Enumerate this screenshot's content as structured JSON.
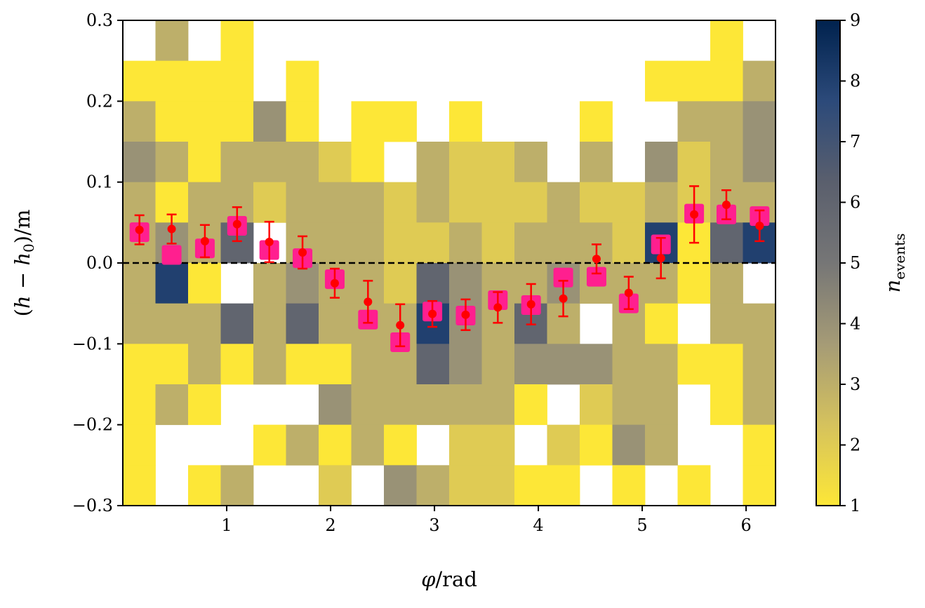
{
  "chart_data": {
    "type": "heatmap",
    "title": "",
    "xlabel": "φ/rad",
    "ylabel": "(h − h0)/m",
    "colorbar_label": "n_events",
    "xlim": [
      0,
      6.2832
    ],
    "ylim": [
      -0.3,
      0.3
    ],
    "x_ticks": [
      1,
      2,
      3,
      4,
      5,
      6
    ],
    "x_tick_labels": [
      "1",
      "2",
      "3",
      "4",
      "5",
      "6"
    ],
    "y_ticks": [
      -0.3,
      -0.2,
      -0.1,
      0.0,
      0.1,
      0.2,
      0.3
    ],
    "y_tick_labels": [
      "−0.3",
      "−0.2",
      "−0.1",
      "0.0",
      "0.1",
      "0.2",
      "0.3"
    ],
    "colorbar_range": [
      1,
      9
    ],
    "colorbar_ticks": [
      1,
      2,
      3,
      4,
      5,
      6,
      7,
      8,
      9
    ],
    "colorbar_tick_labels": [
      "1",
      "2",
      "3",
      "4",
      "5",
      "6",
      "7",
      "8",
      "9"
    ],
    "colormap": "cividis (reversed)",
    "colormap_stops": [
      "#fde737",
      "#d5c25d",
      "#a59b76",
      "#767676",
      "#5a5f6d",
      "#2c4a7a",
      "#00224e"
    ],
    "reference_line": {
      "y": 0.0,
      "style": "dashed",
      "color": "#000000"
    },
    "grid": false,
    "heatmap": {
      "n_x_bins": 20,
      "n_y_bins": 12,
      "y_top": 0.3,
      "y_bottom": -0.3,
      "counts_top_to_bottom": [
        [
          0,
          3,
          0,
          1,
          0,
          0,
          0,
          0,
          0,
          0,
          0,
          0,
          0,
          0,
          0,
          0,
          0,
          0,
          1,
          0
        ],
        [
          1,
          1,
          1,
          1,
          0,
          1,
          0,
          0,
          0,
          0,
          0,
          0,
          0,
          0,
          0,
          0,
          1,
          1,
          1,
          3
        ],
        [
          3,
          1,
          1,
          1,
          4,
          1,
          0,
          1,
          1,
          0,
          1,
          0,
          0,
          0,
          1,
          0,
          0,
          3,
          3,
          4
        ],
        [
          4,
          3,
          1,
          3,
          3,
          3,
          2,
          1,
          0,
          3,
          2,
          2,
          3,
          0,
          3,
          0,
          4,
          2,
          3,
          4
        ],
        [
          3,
          1,
          3,
          3,
          2,
          3,
          3,
          3,
          2,
          3,
          2,
          2,
          2,
          3,
          2,
          2,
          3,
          2,
          3,
          3
        ],
        [
          3,
          4,
          3,
          6,
          0,
          3,
          3,
          3,
          2,
          2,
          3,
          2,
          3,
          3,
          3,
          2,
          8,
          1,
          6,
          8
        ],
        [
          3,
          8,
          1,
          0,
          3,
          4,
          3,
          3,
          2,
          6,
          4,
          3,
          3,
          4,
          3,
          3,
          3,
          1,
          3,
          0
        ],
        [
          3,
          3,
          3,
          6,
          3,
          6,
          3,
          3,
          3,
          8,
          4,
          3,
          6,
          3,
          0,
          3,
          1,
          0,
          3,
          3
        ],
        [
          1,
          1,
          3,
          1,
          3,
          1,
          1,
          3,
          3,
          6,
          4,
          3,
          4,
          4,
          4,
          3,
          3,
          1,
          1,
          3
        ],
        [
          1,
          3,
          1,
          0,
          0,
          0,
          4,
          3,
          3,
          3,
          3,
          3,
          1,
          0,
          2,
          3,
          3,
          0,
          1,
          3
        ],
        [
          1,
          0,
          0,
          0,
          1,
          3,
          1,
          3,
          1,
          0,
          2,
          2,
          0,
          2,
          1,
          4,
          3,
          0,
          0,
          1
        ],
        [
          1,
          0,
          1,
          3,
          0,
          0,
          2,
          0,
          4,
          3,
          2,
          2,
          1,
          1,
          0,
          1,
          0,
          1,
          0,
          1
        ]
      ]
    },
    "series": [
      {
        "name": "",
        "marker": "square",
        "color": "#ff1f8f",
        "x": [
          0.16,
          0.47,
          0.79,
          1.1,
          1.41,
          1.73,
          2.04,
          2.36,
          2.67,
          2.98,
          3.3,
          3.61,
          3.93,
          4.24,
          4.56,
          4.87,
          5.18,
          5.5,
          5.81,
          6.13
        ],
        "y": [
          0.038,
          0.01,
          0.018,
          0.046,
          0.016,
          0.006,
          -0.02,
          -0.07,
          -0.098,
          -0.06,
          -0.065,
          -0.046,
          -0.052,
          -0.018,
          -0.017,
          -0.05,
          0.023,
          0.061,
          0.06,
          0.058
        ]
      },
      {
        "name": "",
        "marker": "circle-errorbar",
        "color": "#ff0000",
        "x": [
          0.16,
          0.47,
          0.79,
          1.1,
          1.41,
          1.73,
          2.04,
          2.36,
          2.67,
          2.98,
          3.3,
          3.61,
          3.93,
          4.24,
          4.56,
          4.87,
          5.18,
          5.5,
          5.81,
          6.13
        ],
        "y": [
          0.041,
          0.042,
          0.027,
          0.048,
          0.026,
          0.013,
          -0.025,
          -0.048,
          -0.077,
          -0.063,
          -0.064,
          -0.055,
          -0.051,
          -0.044,
          0.005,
          -0.037,
          0.006,
          0.06,
          0.072,
          0.046
        ],
        "yerr": [
          0.018,
          0.018,
          0.02,
          0.021,
          0.025,
          0.02,
          0.018,
          0.026,
          0.026,
          0.016,
          0.019,
          0.019,
          0.025,
          0.022,
          0.018,
          0.02,
          0.025,
          0.035,
          0.018,
          0.019
        ]
      }
    ]
  }
}
